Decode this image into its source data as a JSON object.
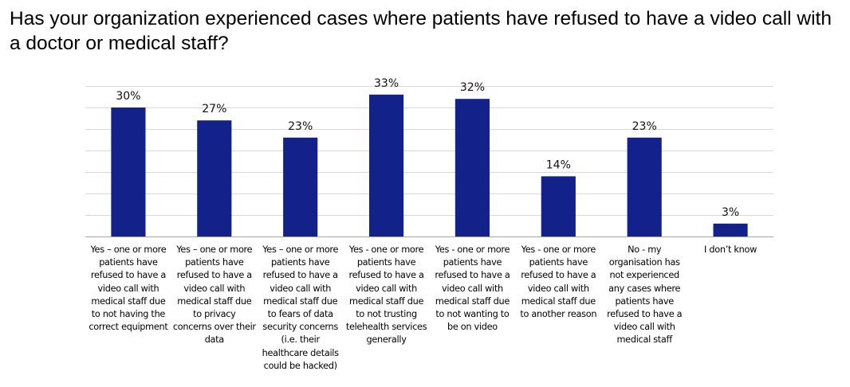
{
  "chart_data": {
    "type": "bar",
    "title": "Has your organization experienced cases where patients have refused to have a video call with a doctor or medical staff?",
    "xlabel": "",
    "ylabel": "",
    "ylim": [
      0,
      35
    ],
    "ytick_step": 5,
    "y_axis_labels_visible": false,
    "grid": true,
    "legend": "none",
    "bar_color": "#12228A",
    "grid_color": "#D9D9D9",
    "axis_color": "#A6A6A6",
    "categories": [
      "Yes – one or more patients have refused to have a video call with medical staff due to not having the correct equipment",
      "Yes – one or more patients have refused to have a video call with medical staff due to privacy concerns over their data",
      "Yes – one or more patients have refused to have a video call with medical staff due to fears of data security concerns (i.e. their healthcare details could be hacked)",
      "Yes - one or more patients have refused to have a video call with medical staff due to not trusting telehealth services generally",
      "Yes - one or more patients have refused to have a video call with medical staff due to not wanting to be on video",
      "Yes - one or more patients have refused to have a video call with medical staff due to another reason",
      "No - my organisation has not experienced any cases where patients have refused to have a video call with medical staff",
      "I don’t know"
    ],
    "category_lines": [
      [
        "Yes – one or more",
        "patients have",
        "refused to have a",
        "video call with",
        "medical staff due",
        "to not having the",
        "correct equipment"
      ],
      [
        "Yes – one or more",
        "patients have",
        "refused to have a",
        "video call with",
        "medical staff due",
        "to privacy",
        "concerns over their",
        "data"
      ],
      [
        "Yes – one or more",
        "patients have",
        "refused to have a",
        "video call with",
        "medical staff due",
        "to fears of data",
        "security concerns",
        "(i.e. their",
        "healthcare details",
        "could be hacked)"
      ],
      [
        "Yes - one or more",
        "patients have",
        "refused to have a",
        "video call with",
        "medical staff due",
        "to not trusting",
        "telehealth services",
        "generally"
      ],
      [
        "Yes - one or more",
        "patients have",
        "refused to have a",
        "video call with",
        "medical staff due",
        "to not wanting to",
        "be on video"
      ],
      [
        "Yes - one or more",
        "patients have",
        "refused to have a",
        "video call with",
        "medical staff due",
        "to another reason"
      ],
      [
        "No - my",
        "organisation has",
        "not experienced",
        "any cases where",
        "patients have",
        "refused to have a",
        "video call with",
        "medical staff"
      ],
      [
        "I don’t know"
      ]
    ],
    "values": [
      30,
      27,
      23,
      33,
      32,
      14,
      23,
      3
    ],
    "data_labels": [
      "30%",
      "27%",
      "23%",
      "33%",
      "32%",
      "14%",
      "23%",
      "3%"
    ]
  }
}
